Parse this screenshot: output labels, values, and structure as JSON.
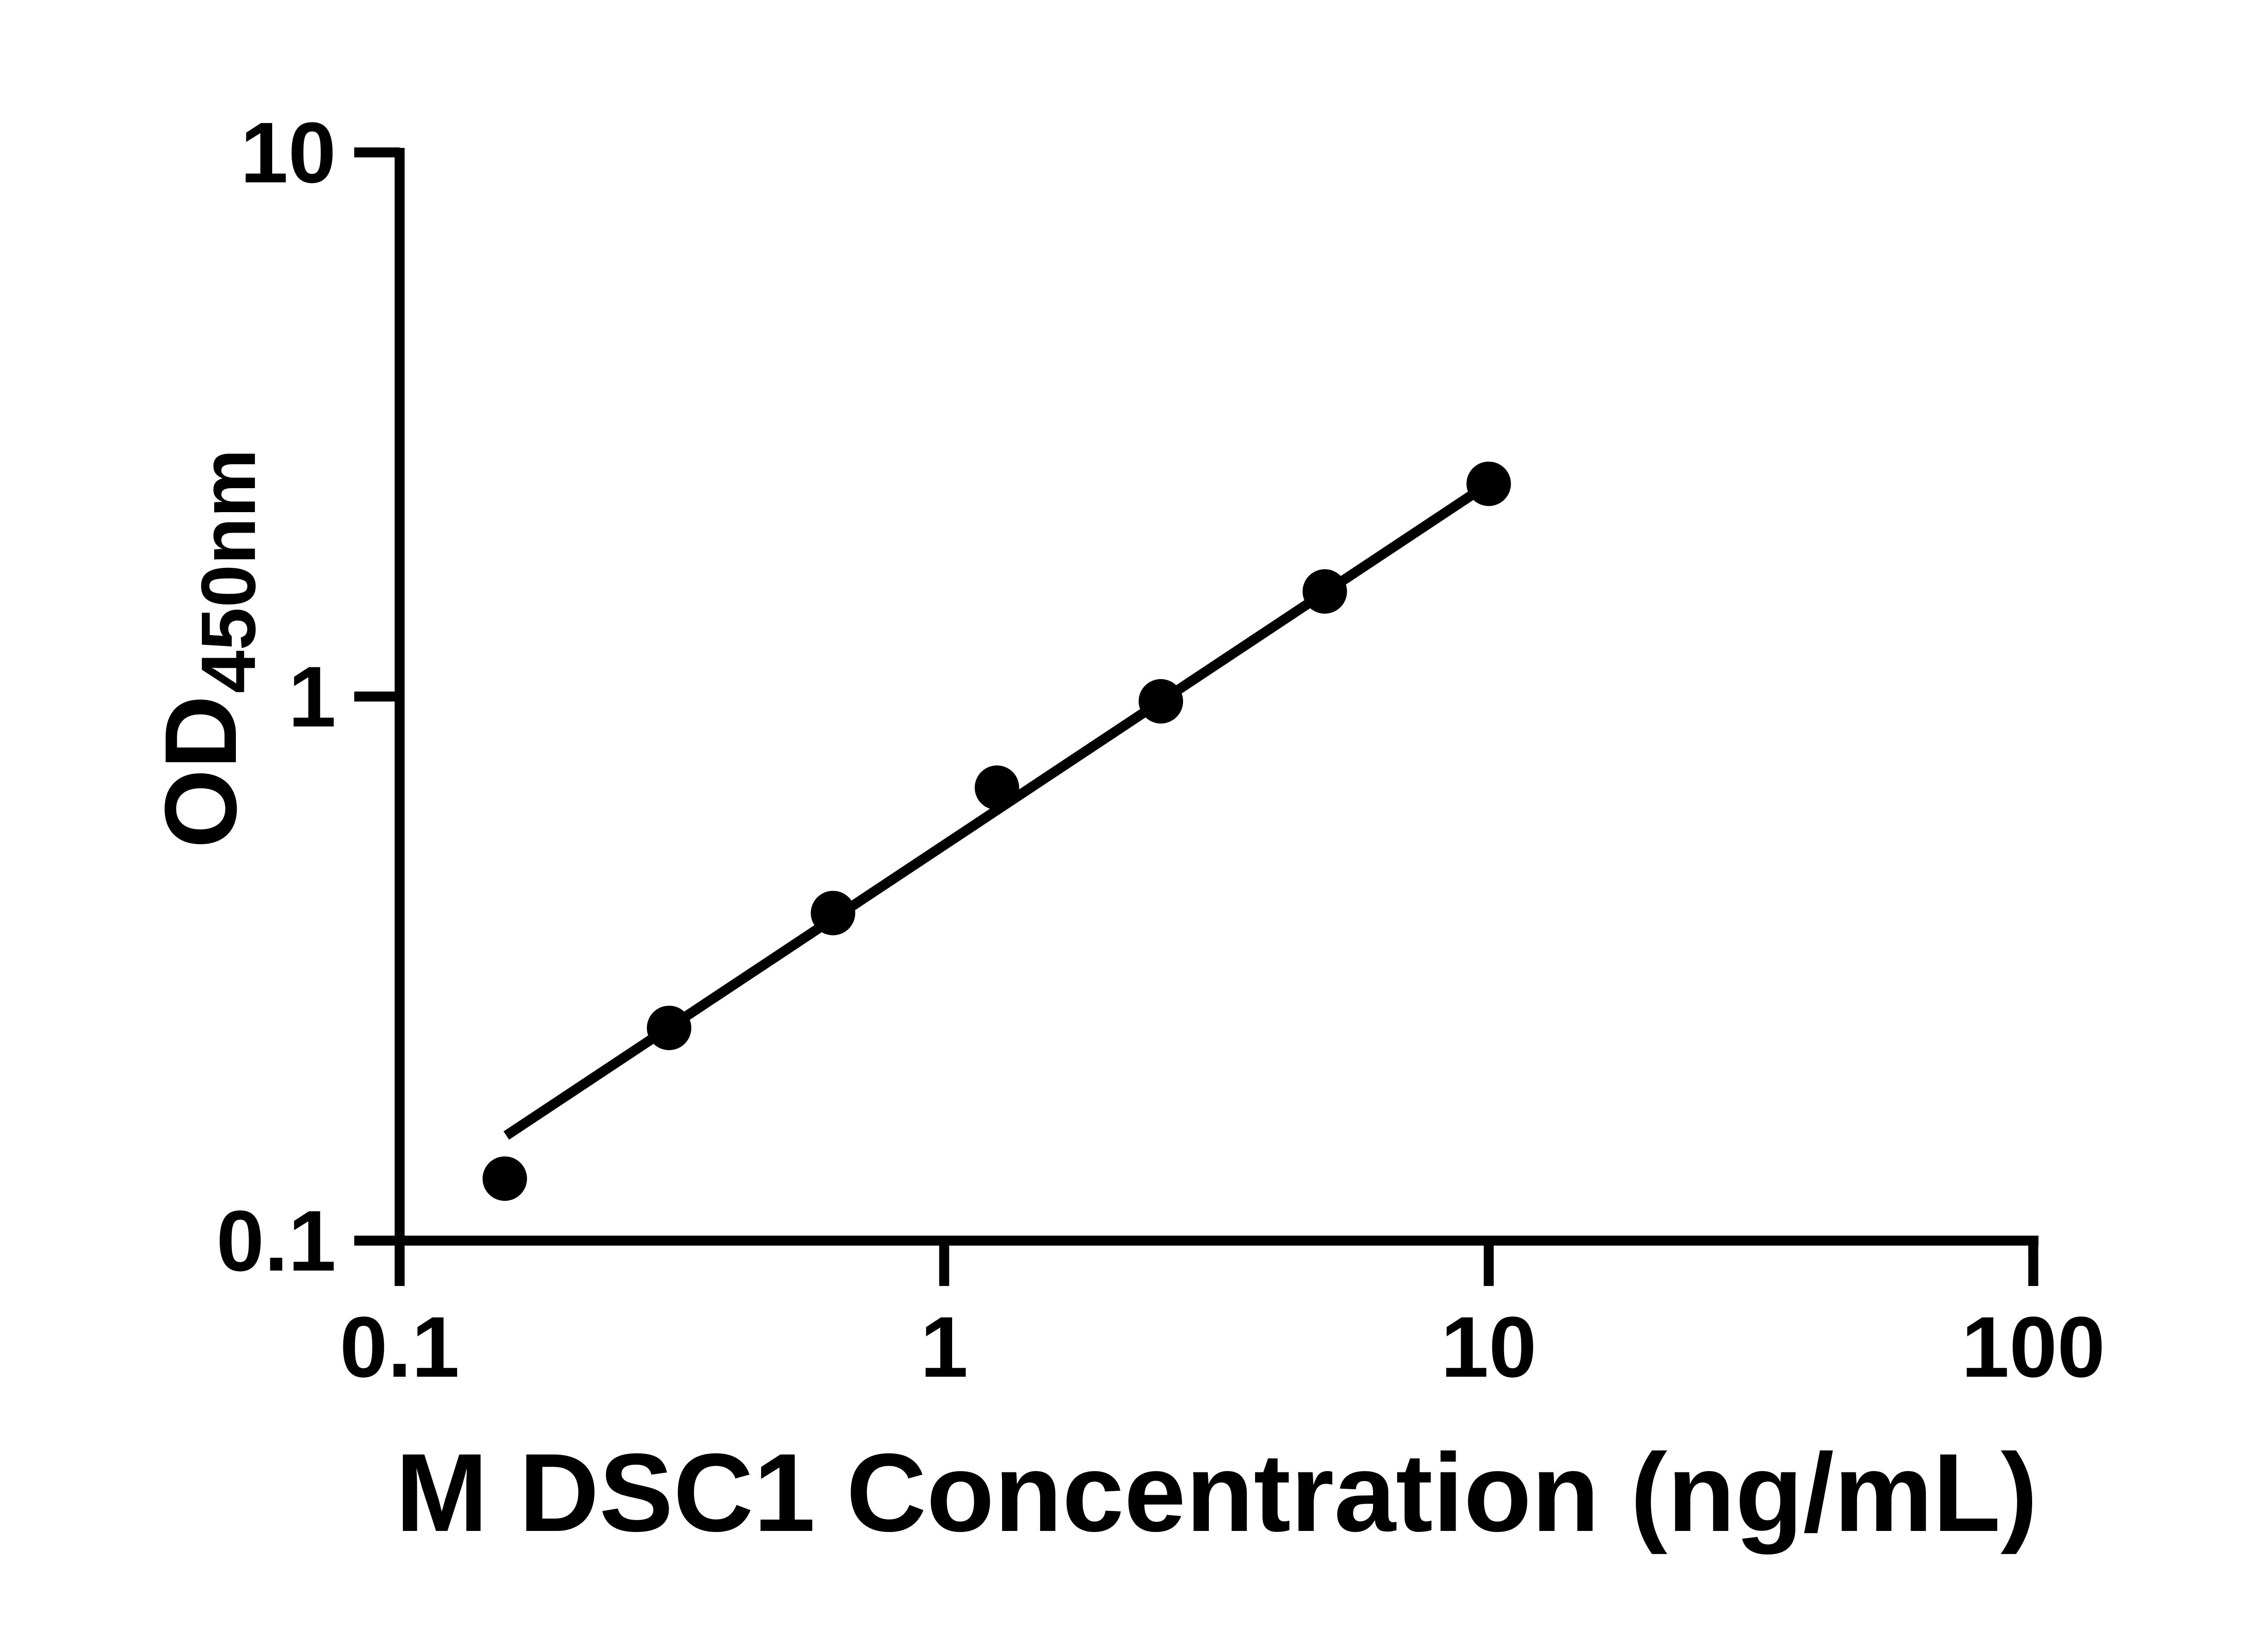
{
  "figure": {
    "background_color": "#ffffff",
    "ink_color": "#000000"
  },
  "chart_data": {
    "type": "scatter",
    "title": "",
    "xlabel": "M DSC1 Concentration (ng/mL)",
    "ylabel": "OD",
    "ylabel_subscript": "450nm",
    "x_scale": "log",
    "y_scale": "log",
    "xlim": [
      0.1,
      100
    ],
    "ylim": [
      0.1,
      10
    ],
    "grid": false,
    "legend": "none",
    "x_ticks": [
      {
        "label": "0.1",
        "value": 0.1
      },
      {
        "label": "1",
        "value": 1
      },
      {
        "label": "10",
        "value": 10
      },
      {
        "label": "100",
        "value": 100
      }
    ],
    "y_ticks": [
      {
        "label": "10",
        "value": 10
      },
      {
        "label": "1",
        "value": 1
      },
      {
        "label": "0.1",
        "value": 0.1
      }
    ],
    "series": [
      {
        "name": "standard-curve-points",
        "marker": "filled-circle",
        "marker_color": "#000000",
        "x": [
          0.156,
          0.3125,
          0.625,
          1.25,
          2.5,
          5,
          10
        ],
        "y": [
          0.13,
          0.246,
          0.4,
          0.68,
          0.98,
          1.56,
          2.46
        ]
      }
    ],
    "trend_line": {
      "color": "#000000",
      "x_start": 0.157,
      "y_start": 0.156,
      "x_end": 10,
      "y_end": 2.46
    }
  }
}
